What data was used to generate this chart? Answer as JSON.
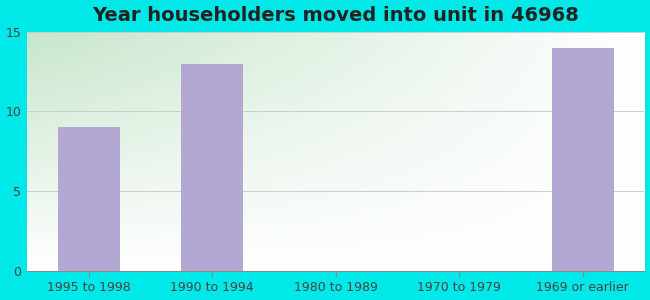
{
  "title": "Year householders moved into unit in 46968",
  "categories": [
    "1995 to 1998",
    "1990 to 1994",
    "1980 to 1989",
    "1970 to 1979",
    "1969 or earlier"
  ],
  "values": [
    9,
    13,
    0,
    0,
    14
  ],
  "bar_color": "#b3a8d4",
  "ylim": [
    0,
    15
  ],
  "yticks": [
    0,
    5,
    10,
    15
  ],
  "title_fontsize": 14,
  "tick_fontsize": 9,
  "bg_outer": "#00e8e8",
  "bg_grad_bottom_left": "#c8e6c9",
  "bg_grad_top_right": "#ffffff",
  "grid_color": "#cccccc",
  "bar_width": 0.5
}
